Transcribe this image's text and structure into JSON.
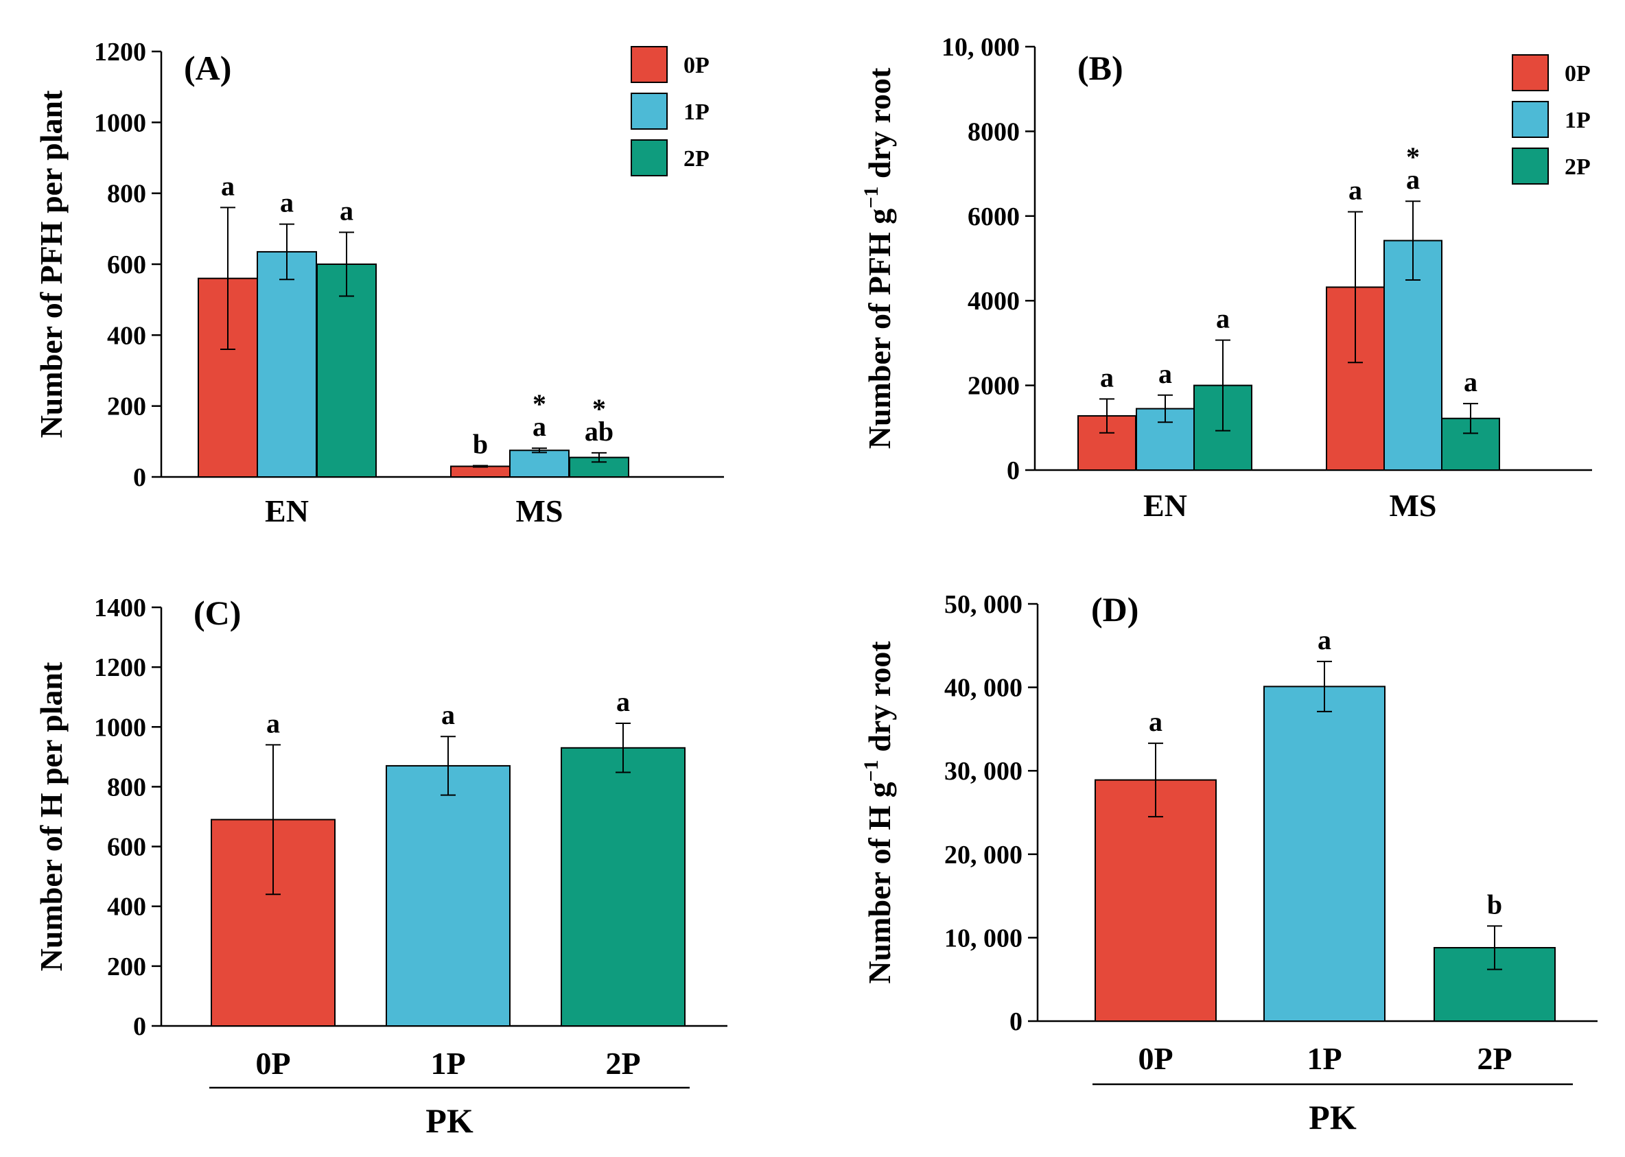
{
  "colors": {
    "0P": "#E5493A",
    "1P": "#4DBAD6",
    "2P": "#0F9C7E"
  },
  "chart_data": [
    {
      "panel_label": "(A)",
      "type": "bar",
      "ylabel": "Number of PFH per plant",
      "ylim": [
        0,
        1200
      ],
      "yticks": [
        0,
        200,
        400,
        600,
        800,
        1000,
        1200
      ],
      "ytick_labels": [
        "0",
        "200",
        "400",
        "600",
        "800",
        "1000",
        "1200"
      ],
      "categories": [
        "EN",
        "MS"
      ],
      "legend": [
        "0P",
        "1P",
        "2P"
      ],
      "legend_position": "top-right",
      "series": [
        {
          "name": "0P",
          "values": [
            560,
            30
          ],
          "errors": [
            200,
            2
          ],
          "letters": [
            "a",
            "b"
          ],
          "stars": [
            "",
            ""
          ]
        },
        {
          "name": "1P",
          "values": [
            635,
            75
          ],
          "errors": [
            78,
            6
          ],
          "letters": [
            "a",
            "a"
          ],
          "stars": [
            "",
            "*"
          ]
        },
        {
          "name": "2P",
          "values": [
            600,
            55
          ],
          "errors": [
            90,
            13
          ],
          "letters": [
            "a",
            "ab"
          ],
          "stars": [
            "",
            "*"
          ]
        }
      ]
    },
    {
      "panel_label": "(B)",
      "type": "bar",
      "ylabel_parts": [
        "Number of PFH g",
        "−1",
        " dry root"
      ],
      "ylim": [
        0,
        10000
      ],
      "yticks": [
        0,
        2000,
        4000,
        6000,
        8000,
        10000
      ],
      "ytick_labels": [
        "0",
        "2000",
        "4000",
        "6000",
        "8000",
        "10, 000"
      ],
      "categories": [
        "EN",
        "MS"
      ],
      "legend": [
        "0P",
        "1P",
        "2P"
      ],
      "legend_position": "top-right",
      "series": [
        {
          "name": "0P",
          "values": [
            1280,
            4320
          ],
          "errors": [
            400,
            1780
          ],
          "letters": [
            "a",
            "a"
          ],
          "stars": [
            "",
            ""
          ]
        },
        {
          "name": "1P",
          "values": [
            1450,
            5420
          ],
          "errors": [
            320,
            930
          ],
          "letters": [
            "a",
            "a"
          ],
          "stars": [
            "",
            "*"
          ]
        },
        {
          "name": "2P",
          "values": [
            2000,
            1220
          ],
          "errors": [
            1070,
            350
          ],
          "letters": [
            "a",
            "a"
          ],
          "stars": [
            "",
            ""
          ]
        }
      ]
    },
    {
      "panel_label": "(C)",
      "type": "bar",
      "ylabel": "Number of H per plant",
      "ylim": [
        0,
        1400
      ],
      "yticks": [
        0,
        200,
        400,
        600,
        800,
        1000,
        1200,
        1400
      ],
      "ytick_labels": [
        "0",
        "200",
        "400",
        "600",
        "800",
        "1000",
        "1200",
        "1400"
      ],
      "categories": [
        "0P",
        "1P",
        "2P"
      ],
      "group_label": "PK",
      "values": [
        690,
        870,
        930
      ],
      "errors": [
        250,
        98,
        82
      ],
      "letters": [
        "a",
        "a",
        "a"
      ]
    },
    {
      "panel_label": "(D)",
      "type": "bar",
      "ylabel_parts": [
        "Number of H g",
        "−1",
        " dry root"
      ],
      "ylim": [
        0,
        50000
      ],
      "yticks": [
        0,
        10000,
        20000,
        30000,
        40000,
        50000
      ],
      "ytick_labels": [
        "0",
        "10, 000",
        "20, 000",
        "30, 000",
        "40, 000",
        "50, 000"
      ],
      "categories": [
        "0P",
        "1P",
        "2P"
      ],
      "group_label": "PK",
      "values": [
        28900,
        40100,
        8800
      ],
      "errors": [
        4400,
        3000,
        2600
      ],
      "letters": [
        "a",
        "a",
        "b"
      ]
    }
  ]
}
